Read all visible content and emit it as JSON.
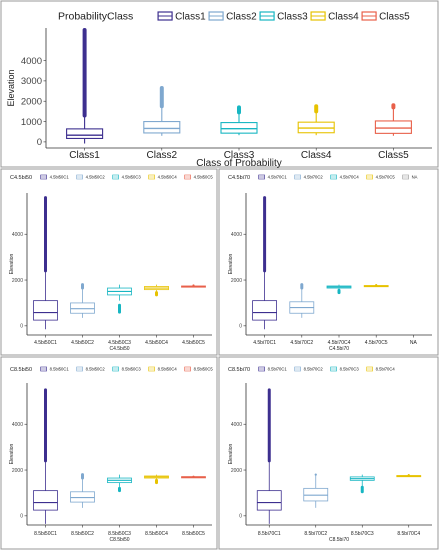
{
  "chart_data": [
    {
      "type": "box",
      "legend_title": "ProbabilityClass",
      "legend_position": "top",
      "legend_labels": [
        "Class1",
        "Class2",
        "Class3",
        "Class4",
        "Class5"
      ],
      "series_colors": [
        "#3d2f8f",
        "#7fa8cf",
        "#17b6c2",
        "#e7c200",
        "#e8604a"
      ],
      "xlabel": "Class of Probability",
      "ylabel": "Elevation",
      "ylim": [
        -300,
        5600
      ],
      "yticks": [
        0,
        1000,
        2000,
        3000,
        4000
      ],
      "categories": [
        "Class1",
        "Class2",
        "Class3",
        "Class4",
        "Class5"
      ],
      "boxes": [
        {
          "q1": 170,
          "median": 330,
          "q3": 640,
          "whisker_low": -80,
          "whisker_high": 1300,
          "outliers_from": 1300,
          "outliers_to": 5500
        },
        {
          "q1": 440,
          "median": 660,
          "q3": 1000,
          "whisker_low": 300,
          "whisker_high": 1750,
          "outliers_from": 1750,
          "outliers_to": 2650
        },
        {
          "q1": 430,
          "median": 650,
          "q3": 950,
          "whisker_low": 330,
          "whisker_high": 1400,
          "outliers_from": 1450,
          "outliers_to": 1700
        },
        {
          "q1": 450,
          "median": 680,
          "q3": 970,
          "whisker_low": 330,
          "whisker_high": 1450,
          "outliers_from": 1500,
          "outliers_to": 1750
        },
        {
          "q1": 420,
          "median": 680,
          "q3": 1030,
          "whisker_low": 300,
          "whisker_high": 1700,
          "outliers_from": 1700,
          "outliers_to": 1800
        }
      ]
    },
    {
      "type": "box",
      "legend_title": "C4.5bi50",
      "legend_position": "top",
      "legend_labels": [
        "4.5bi50C1",
        "4.5bi50C2",
        "4.5bi50C3",
        "4.5bi50C4",
        "4.5bi50C5"
      ],
      "series_colors": [
        "#3d2f8f",
        "#7fa8cf",
        "#17b6c2",
        "#e7c200",
        "#e8604a"
      ],
      "xlabel": "C4.5bi50",
      "ylabel": "Elevation",
      "ylim": [
        -400,
        5800
      ],
      "yticks": [
        0,
        2000,
        4000
      ],
      "categories": [
        "4.5bi50C1",
        "4.5bi50C2",
        "4.5bi50C3",
        "4.5bi50C4",
        "4.5bi50C5"
      ],
      "boxes": [
        {
          "q1": 250,
          "median": 580,
          "q3": 1100,
          "whisker_low": -150,
          "whisker_high": 2400,
          "outliers_from": 2400,
          "outliers_to": 5600
        },
        {
          "q1": 550,
          "median": 750,
          "q3": 1000,
          "whisker_low": 350,
          "whisker_high": 1600,
          "outliers_from": 1650,
          "outliers_to": 1800
        },
        {
          "q1": 1350,
          "median": 1500,
          "q3": 1650,
          "whisker_low": 1100,
          "whisker_high": 1800,
          "outliers_from": 600,
          "outliers_to": 900
        },
        {
          "q1": 1580,
          "median": 1650,
          "q3": 1720,
          "whisker_low": 1400,
          "whisker_high": 1800,
          "outliers_from": 1350,
          "outliers_to": 1450
        },
        {
          "q1": 1700,
          "median": 1720,
          "q3": 1740,
          "whisker_low": 1690,
          "whisker_high": 1760,
          "outliers_from": 1760,
          "outliers_to": 1760
        }
      ]
    },
    {
      "type": "box",
      "legend_title": "C4.5bi70",
      "legend_position": "top",
      "legend_labels": [
        "4.5bi70C1",
        "4.5bi70C2",
        "4.5bi70C4",
        "4.5bi70C5",
        "NA"
      ],
      "series_colors": [
        "#3d2f8f",
        "#7fa8cf",
        "#17b6c2",
        "#e7c200",
        "#999999"
      ],
      "xlabel": "C4.5bi70",
      "ylabel": "Elevation",
      "ylim": [
        -400,
        5800
      ],
      "yticks": [
        0,
        2000,
        4000
      ],
      "categories": [
        "4.5bi70C1",
        "4.5bi70C2",
        "4.5bi70C4",
        "4.5bi70C5",
        "NA"
      ],
      "boxes": [
        {
          "q1": 250,
          "median": 580,
          "q3": 1100,
          "whisker_low": -150,
          "whisker_high": 2400,
          "outliers_from": 2400,
          "outliers_to": 5600
        },
        {
          "q1": 550,
          "median": 800,
          "q3": 1050,
          "whisker_low": 350,
          "whisker_high": 1650,
          "outliers_from": 1650,
          "outliers_to": 1800
        },
        {
          "q1": 1650,
          "median": 1700,
          "q3": 1740,
          "whisker_low": 1550,
          "whisker_high": 1800,
          "outliers_from": 1450,
          "outliers_to": 1550
        },
        {
          "q1": 1720,
          "median": 1740,
          "q3": 1760,
          "whisker_low": 1710,
          "whisker_high": 1780,
          "outliers_from": 1780,
          "outliers_to": 1780
        },
        null
      ]
    },
    {
      "type": "box",
      "legend_title": "C8.5bi50",
      "legend_position": "top",
      "legend_labels": [
        "8.5bi50C1",
        "8.5bi50C2",
        "8.5bi50C3",
        "8.5bi50C4",
        "8.5bi50C5"
      ],
      "series_colors": [
        "#3d2f8f",
        "#7fa8cf",
        "#17b6c2",
        "#e7c200",
        "#e8604a"
      ],
      "xlabel": "C8.5bi50",
      "ylabel": "Elevation",
      "ylim": [
        -400,
        5800
      ],
      "yticks": [
        0,
        2000,
        4000
      ],
      "categories": [
        "8.5bi50C1",
        "8.5bi50C2",
        "8.5bi50C3",
        "8.5bi50C4",
        "8.5bi50C5"
      ],
      "boxes": [
        {
          "q1": 250,
          "median": 580,
          "q3": 1100,
          "whisker_low": -350,
          "whisker_high": 2400,
          "outliers_from": 2400,
          "outliers_to": 5500
        },
        {
          "q1": 600,
          "median": 800,
          "q3": 1050,
          "whisker_low": 350,
          "whisker_high": 1650,
          "outliers_from": 1650,
          "outliers_to": 1800
        },
        {
          "q1": 1450,
          "median": 1550,
          "q3": 1650,
          "whisker_low": 1200,
          "whisker_high": 1800,
          "outliers_from": 1100,
          "outliers_to": 1200
        },
        {
          "q1": 1650,
          "median": 1700,
          "q3": 1740,
          "whisker_low": 1550,
          "whisker_high": 1800,
          "outliers_from": 1450,
          "outliers_to": 1550
        },
        {
          "q1": 1690,
          "median": 1700,
          "q3": 1710,
          "whisker_low": 1690,
          "whisker_high": 1710,
          "outliers_from": 1710,
          "outliers_to": 1710
        }
      ]
    },
    {
      "type": "box",
      "legend_title": "C8.5bi70",
      "legend_position": "top",
      "legend_labels": [
        "8.5bi70C1",
        "8.5bi70C2",
        "8.5bi70C3",
        "8.5bi70C4"
      ],
      "series_colors": [
        "#3d2f8f",
        "#7fa8cf",
        "#17b6c2",
        "#e7c200"
      ],
      "xlabel": "C8.5bi70",
      "ylabel": "Elevation",
      "ylim": [
        -400,
        5800
      ],
      "yticks": [
        0,
        2000,
        4000
      ],
      "categories": [
        "8.5bi70C1",
        "8.5bi70C2",
        "8.5bi70C3",
        "8.5bi70C4"
      ],
      "boxes": [
        {
          "q1": 250,
          "median": 580,
          "q3": 1100,
          "whisker_low": -350,
          "whisker_high": 2400,
          "outliers_from": 2400,
          "outliers_to": 5500
        },
        {
          "q1": 650,
          "median": 900,
          "q3": 1200,
          "whisker_low": 350,
          "whisker_high": 1800,
          "outliers_from": 1800,
          "outliers_to": 1800
        },
        {
          "q1": 1550,
          "median": 1620,
          "q3": 1700,
          "whisker_low": 1300,
          "whisker_high": 1800,
          "outliers_from": 1050,
          "outliers_to": 1250
        },
        {
          "q1": 1720,
          "median": 1740,
          "q3": 1760,
          "whisker_low": 1700,
          "whisker_high": 1780,
          "outliers_from": 1780,
          "outliers_to": 1780
        }
      ]
    }
  ]
}
